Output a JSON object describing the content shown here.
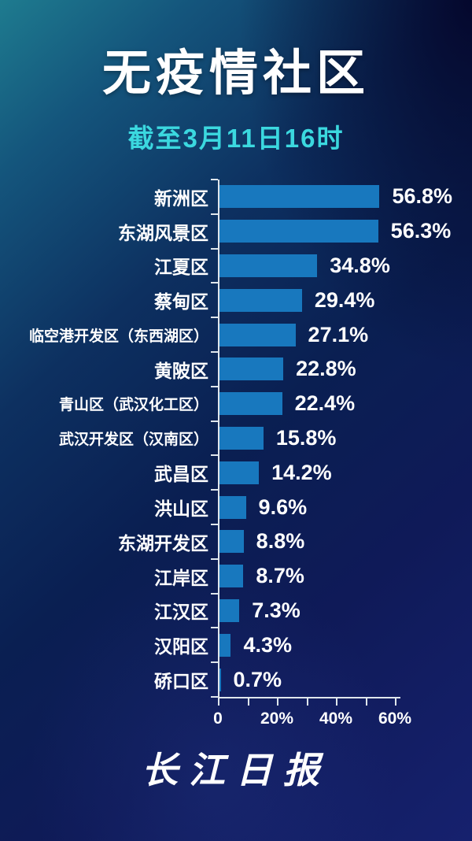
{
  "header": {
    "title": "无疫情社区",
    "subtitle": "截至3月11日16时"
  },
  "footer": {
    "logo_text": "长江日报"
  },
  "chart_data": {
    "type": "bar",
    "orientation": "horizontal",
    "title": "无疫情社区",
    "subtitle": "截至3月11日16时",
    "categories": [
      "新洲区",
      "东湖风景区",
      "江夏区",
      "蔡甸区",
      "临空港开发区（东西湖区）",
      "黄陂区",
      "青山区（武汉化工区）",
      "武汉开发区（汉南区）",
      "武昌区",
      "洪山区",
      "东湖开发区",
      "江岸区",
      "江汉区",
      "汉阳区",
      "硚口区"
    ],
    "values": [
      56.8,
      56.3,
      34.8,
      29.4,
      27.1,
      22.8,
      22.4,
      15.8,
      14.2,
      9.6,
      8.8,
      8.7,
      7.3,
      4.3,
      0.7
    ],
    "value_labels": [
      "56.8%",
      "56.3%",
      "34.8%",
      "29.4%",
      "27.1%",
      "22.8%",
      "22.4%",
      "15.8%",
      "14.2%",
      "9.6%",
      "8.8%",
      "8.7%",
      "7.3%",
      "4.3%",
      "0.7%"
    ],
    "unit": "%",
    "xlim": [
      0,
      60
    ],
    "x_major_ticks": [
      0,
      20,
      40,
      60
    ],
    "x_tick_labels": [
      "0",
      "20%",
      "40%",
      "60%"
    ],
    "x_minor_tick_interval": 10,
    "grid": false,
    "legend": false,
    "colors": {
      "bar": "#1878BE",
      "title": "#FFFFFF",
      "subtitle": "#3BD8DF",
      "label": "#FFFFFF",
      "axis": "#DFE6EC",
      "background_teal": "#1E7B8F",
      "background_navy": "#16216E",
      "background_dark": "#04052A"
    }
  }
}
